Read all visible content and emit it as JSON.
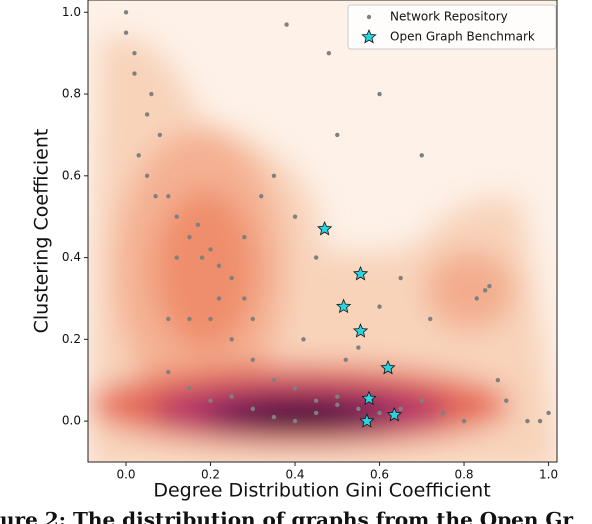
{
  "chart_data": {
    "type": "scatter",
    "xlabel": "Degree Distribution Gini Coefficient",
    "ylabel": "Clustering Coefficient",
    "caption": "ure 2: The distribution of graphs from the Open Gr",
    "xlim": [
      -0.09,
      1.02
    ],
    "ylim": [
      -0.1,
      1.03
    ],
    "xticks": [
      {
        "value": 0,
        "label": "0.0"
      },
      {
        "value": 0.2,
        "label": "0.2"
      },
      {
        "value": 0.4,
        "label": "0.4"
      },
      {
        "value": 0.6,
        "label": "0.6"
      },
      {
        "value": 0.8,
        "label": "0.8"
      },
      {
        "value": 1,
        "label": "1.0"
      }
    ],
    "yticks": [
      {
        "value": 0,
        "label": "0.0"
      },
      {
        "value": 0.2,
        "label": "0.2"
      },
      {
        "value": 0.4,
        "label": "0.4"
      },
      {
        "value": 0.6,
        "label": "0.6"
      },
      {
        "value": 0.8,
        "label": "0.8"
      },
      {
        "value": 1,
        "label": "1.0"
      }
    ],
    "legend": "upper right",
    "series": [
      {
        "name": "Network Repository",
        "color": "#808080",
        "marker": "dot",
        "x": [
          0.0,
          0.0,
          0.02,
          0.05,
          0.08,
          0.1,
          0.12,
          0.15,
          0.18,
          0.2,
          0.22,
          0.25,
          0.28,
          0.3,
          0.05,
          0.1,
          0.15,
          0.2,
          0.25,
          0.03,
          0.07,
          0.12,
          0.17,
          0.22,
          0.3,
          0.35,
          0.4,
          0.45,
          0.5,
          0.55,
          0.6,
          0.65,
          0.7,
          0.75,
          0.8,
          0.85,
          0.83,
          0.86,
          0.88,
          0.9,
          0.95,
          0.98,
          1.0,
          0.35,
          0.4,
          0.45,
          0.5,
          0.6,
          0.7,
          0.48,
          0.38,
          0.32,
          0.28,
          0.42,
          0.52,
          0.65,
          0.72,
          0.1,
          0.15,
          0.2,
          0.25,
          0.3,
          0.35,
          0.4,
          0.45,
          0.5,
          0.55,
          0.6,
          0.02,
          0.06
        ],
        "y": [
          1.0,
          0.95,
          0.85,
          0.75,
          0.7,
          0.55,
          0.5,
          0.45,
          0.4,
          0.42,
          0.38,
          0.35,
          0.3,
          0.25,
          0.6,
          0.25,
          0.25,
          0.25,
          0.2,
          0.65,
          0.55,
          0.4,
          0.48,
          0.3,
          0.15,
          0.1,
          0.08,
          0.05,
          0.04,
          0.03,
          0.02,
          0.03,
          0.05,
          0.02,
          0.0,
          0.32,
          0.3,
          0.33,
          0.1,
          0.05,
          0.0,
          0.0,
          0.02,
          0.6,
          0.5,
          0.4,
          0.7,
          0.8,
          0.65,
          0.9,
          0.97,
          0.55,
          0.45,
          0.2,
          0.15,
          0.35,
          0.25,
          0.12,
          0.08,
          0.05,
          0.06,
          0.03,
          0.01,
          0.0,
          0.02,
          0.06,
          0.18,
          0.28,
          0.9,
          0.8
        ]
      },
      {
        "name": "Open Graph Benchmark",
        "color": "#29d3e0",
        "marker": "star",
        "x": [
          0.47,
          0.555,
          0.515,
          0.555,
          0.62,
          0.575,
          0.635,
          0.57
        ],
        "y": [
          0.47,
          0.36,
          0.28,
          0.22,
          0.13,
          0.055,
          0.015,
          0.0
        ]
      }
    ]
  }
}
